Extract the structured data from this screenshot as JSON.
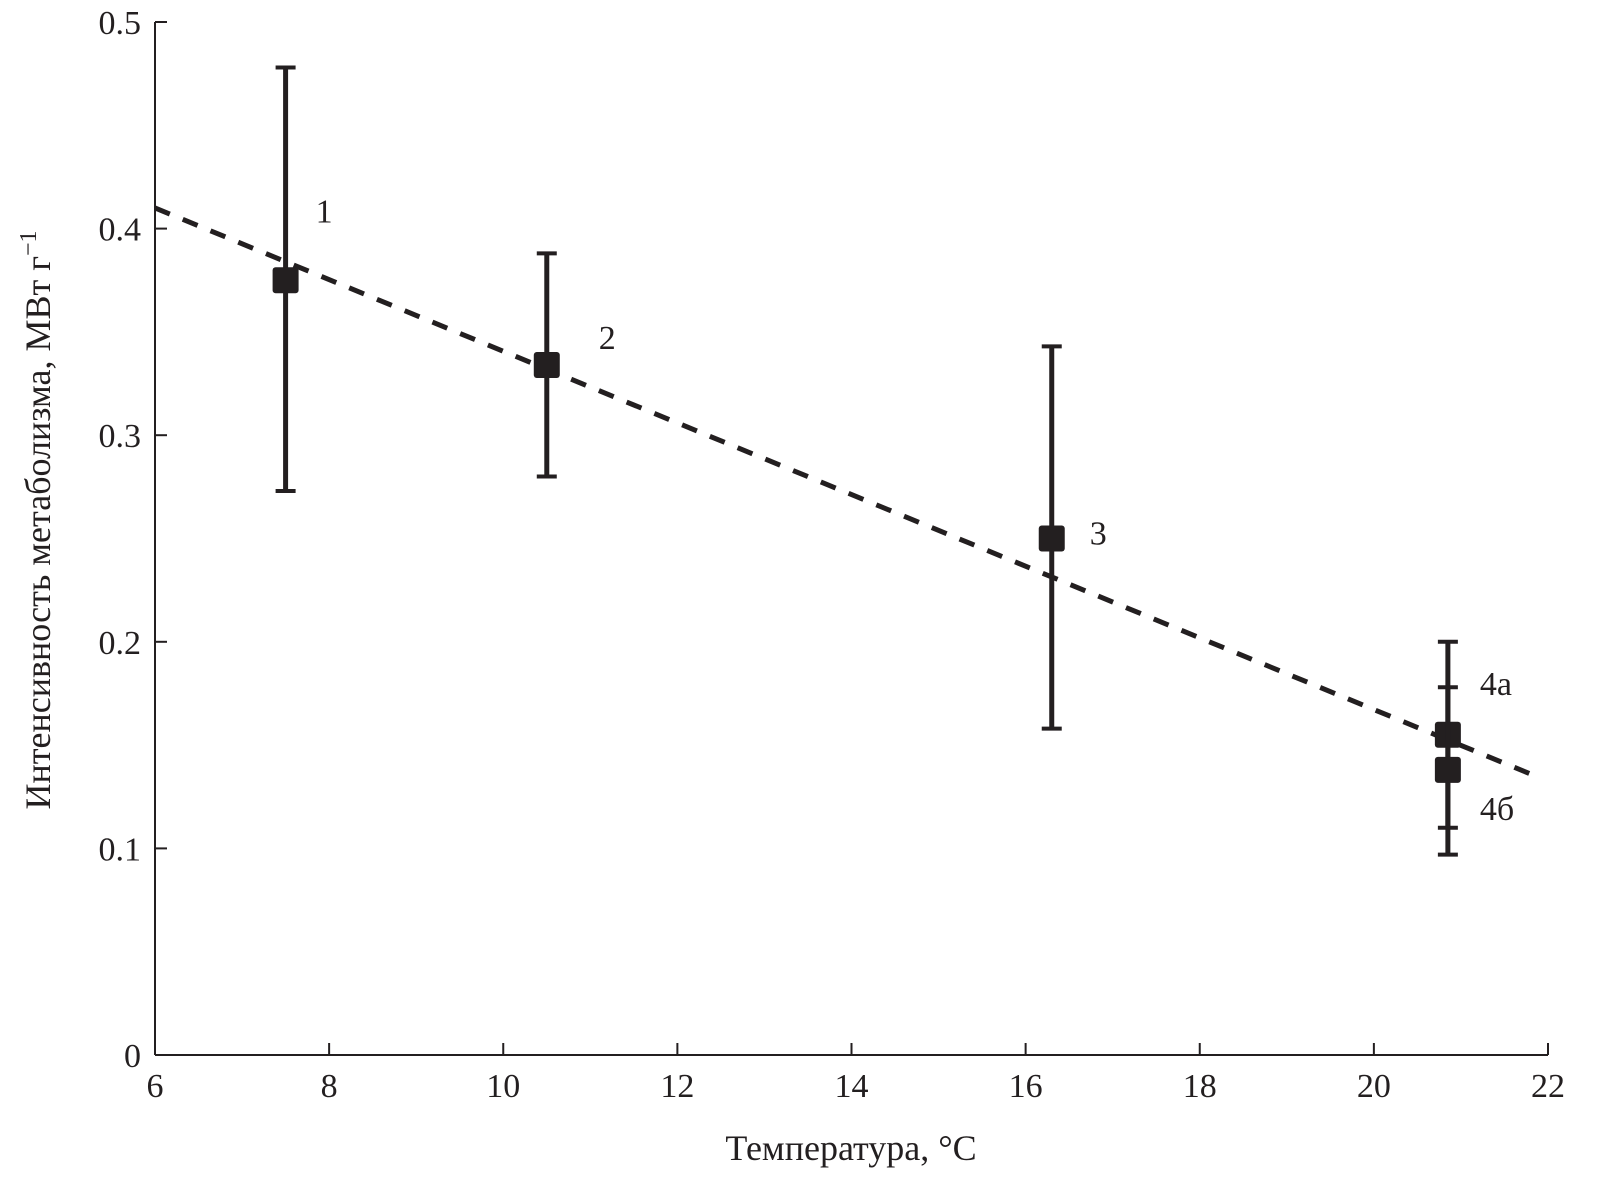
{
  "chart_data": {
    "type": "scatter",
    "title": "",
    "xlabel": "Температура, °C",
    "ylabel": "Интенсивность метаболизма, МВт г",
    "ylabel_sup": "−1",
    "xlim": [
      6,
      22
    ],
    "ylim": [
      0,
      0.5
    ],
    "xticks": [
      "6",
      "8",
      "10",
      "12",
      "14",
      "16",
      "18",
      "20",
      "22"
    ],
    "yticks": [
      "0",
      "0.1",
      "0.2",
      "0.3",
      "0.4",
      "0.5"
    ],
    "grid": false,
    "points": [
      {
        "label": "1",
        "x": 7.5,
        "y": 0.375,
        "err_low": 0.273,
        "err_high": 0.478
      },
      {
        "label": "2",
        "x": 10.5,
        "y": 0.334,
        "err_low": 0.28,
        "err_high": 0.388
      },
      {
        "label": "3",
        "x": 16.3,
        "y": 0.25,
        "err_low": 0.158,
        "err_high": 0.343
      },
      {
        "label": "4а",
        "x": 20.85,
        "y": 0.155,
        "err_low": 0.11,
        "err_high": 0.2
      },
      {
        "label": "4б",
        "x": 20.85,
        "y": 0.138,
        "err_low": 0.097,
        "err_high": 0.178
      }
    ],
    "trendline": {
      "style": "dashed",
      "x": [
        6,
        21.8
      ],
      "y": [
        0.41,
        0.136
      ]
    },
    "color": "#231f20"
  }
}
